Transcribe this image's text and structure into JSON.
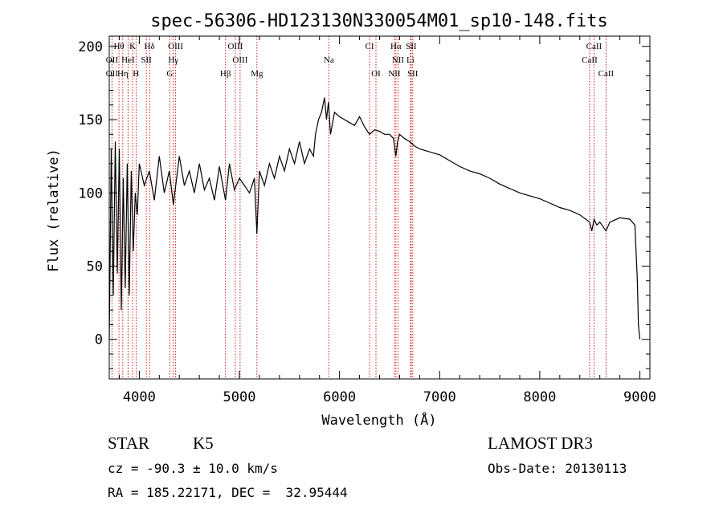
{
  "chart_data": {
    "type": "line",
    "title": "spec-56306-HD123130N330054M01_sp10-148.fits",
    "xlabel": "Wavelength (Å)",
    "ylabel": "Flux (relative)",
    "xlim": [
      3700,
      9100
    ],
    "ylim": [
      -27,
      207
    ],
    "xticks": [
      4000,
      5000,
      6000,
      7000,
      8000,
      9000
    ],
    "yticks": [
      0,
      50,
      100,
      150,
      200
    ],
    "series": [
      {
        "name": "spectrum",
        "x": [
          3700,
          3720,
          3740,
          3760,
          3780,
          3800,
          3820,
          3840,
          3860,
          3880,
          3900,
          3920,
          3940,
          3960,
          3980,
          4000,
          4050,
          4100,
          4150,
          4200,
          4250,
          4300,
          4340,
          4400,
          4450,
          4500,
          4550,
          4600,
          4650,
          4700,
          4750,
          4800,
          4861,
          4900,
          4950,
          5000,
          5050,
          5100,
          5150,
          5175,
          5200,
          5250,
          5300,
          5350,
          5400,
          5450,
          5500,
          5550,
          5600,
          5650,
          5700,
          5740,
          5760,
          5790,
          5820,
          5850,
          5870,
          5890,
          5910,
          5950,
          6000,
          6050,
          6100,
          6150,
          6200,
          6250,
          6300,
          6350,
          6400,
          6450,
          6500,
          6540,
          6563,
          6580,
          6600,
          6650,
          6700,
          6750,
          6800,
          6900,
          7000,
          7100,
          7200,
          7300,
          7400,
          7500,
          7600,
          7700,
          7800,
          7900,
          8000,
          8100,
          8200,
          8300,
          8400,
          8498,
          8520,
          8542,
          8570,
          8600,
          8662,
          8700,
          8800,
          8900,
          8950,
          8975,
          8985,
          9000
        ],
        "values": [
          0,
          130,
          30,
          135,
          45,
          130,
          20,
          110,
          35,
          120,
          30,
          115,
          60,
          100,
          85,
          120,
          105,
          115,
          95,
          125,
          100,
          115,
          92,
          125,
          105,
          115,
          100,
          120,
          102,
          110,
          95,
          118,
          95,
          120,
          102,
          110,
          105,
          100,
          110,
          72,
          115,
          105,
          120,
          110,
          125,
          115,
          130,
          120,
          135,
          120,
          130,
          125,
          140,
          150,
          155,
          165,
          150,
          162,
          140,
          155,
          152,
          150,
          148,
          146,
          152,
          145,
          140,
          143,
          142,
          140,
          140,
          137,
          125,
          135,
          140,
          137,
          135,
          132,
          130,
          128,
          126,
          122,
          118,
          115,
          113,
          110,
          106,
          103,
          100,
          98,
          96,
          93,
          90,
          88,
          85,
          80,
          74,
          82,
          78,
          80,
          74,
          80,
          83,
          82,
          78,
          40,
          10,
          0
        ]
      }
    ],
    "line_annotations": {
      "lines": [
        {
          "label": "Hθ",
          "x": 3797
        },
        {
          "label": "K",
          "x": 3934
        },
        {
          "label": "Hδ",
          "x": 4102
        },
        {
          "label": "OIII",
          "x": 4363
        },
        {
          "label": "OIII",
          "x": 4959
        },
        {
          "label": "CI",
          "x": 6300
        },
        {
          "label": "Hα",
          "x": 6563
        },
        {
          "label": "SII",
          "x": 6716
        },
        {
          "label": "CaII",
          "x": 8542
        },
        {
          "label": "OII",
          "x": 3727
        },
        {
          "label": "HeI",
          "x": 3888
        },
        {
          "label": "SII",
          "x": 4070
        },
        {
          "label": "Hγ",
          "x": 4340
        },
        {
          "label": "OIII",
          "x": 5007
        },
        {
          "label": "Na",
          "x": 5893
        },
        {
          "label": "NII",
          "x": 6584
        },
        {
          "label": "Li",
          "x": 6708
        },
        {
          "label": "CaII",
          "x": 8498
        },
        {
          "label": "OII",
          "x": 3727
        },
        {
          "label": "Hη",
          "x": 3835
        },
        {
          "label": "H",
          "x": 3968
        },
        {
          "label": "G",
          "x": 4305
        },
        {
          "label": "Hβ",
          "x": 4861
        },
        {
          "label": "Mg",
          "x": 5175
        },
        {
          "label": "OI",
          "x": 6364
        },
        {
          "label": "NII",
          "x": 6548
        },
        {
          "label": "SII",
          "x": 6731
        },
        {
          "label": "CaII",
          "x": 8662
        }
      ]
    }
  },
  "info": {
    "class": "STAR",
    "subclass": "K5",
    "survey": "LAMOST DR3",
    "cz_text": "cz = -90.3 ± 10.0 km/s",
    "obs_date": "Obs-Date: 20130113",
    "coords": "RA = 185.22171, DEC =  32.95444"
  }
}
